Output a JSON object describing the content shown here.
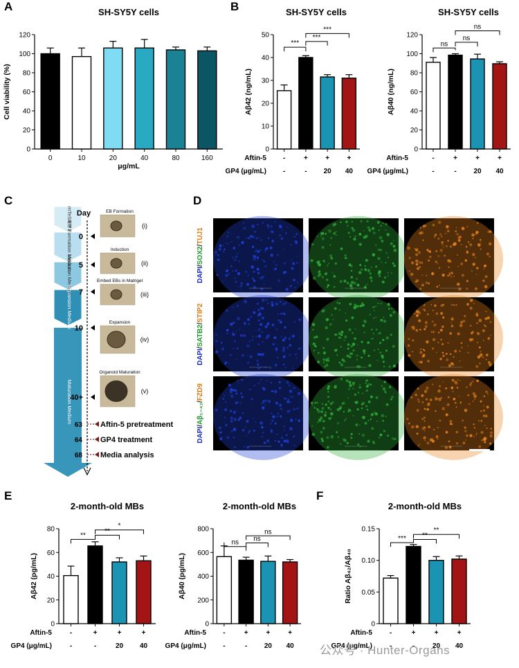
{
  "panel_labels": {
    "A": "A",
    "B": "B",
    "C": "C",
    "D": "D",
    "E": "E",
    "F": "F"
  },
  "chart_data": [
    {
      "id": "A",
      "type": "bar",
      "title": "SH-SY5Y cells",
      "ylabel": "Cell viability (%)",
      "xlabel": "μg/mL",
      "ylim": [
        0,
        120
      ],
      "yticks": [
        0,
        20,
        40,
        60,
        80,
        100,
        120
      ],
      "categories": [
        "0",
        "10",
        "20",
        "40",
        "80",
        "160"
      ],
      "values": [
        100,
        97,
        106,
        106,
        104,
        103
      ],
      "errors": [
        6,
        9,
        7,
        9,
        3,
        4
      ],
      "colors": [
        "#000000",
        "#ffffff",
        "#7fdcf2",
        "#29a9c2",
        "#1b8296",
        "#0c5564"
      ],
      "signif": []
    },
    {
      "id": "B1",
      "type": "bar",
      "title": "SH-SY5Y cells",
      "ylabel": "Aβ42 (ng/mL)",
      "ylim": [
        0,
        50
      ],
      "yticks": [
        0,
        10,
        20,
        30,
        40,
        50
      ],
      "cond_rows": [
        {
          "label": "Aftin-5",
          "values": [
            "-",
            "+",
            "+",
            "+"
          ]
        },
        {
          "label": "GP4 (μg/mL)",
          "values": [
            "-",
            "-",
            "20",
            "40"
          ]
        }
      ],
      "values": [
        25.5,
        40,
        31.5,
        31
      ],
      "errors": [
        2.5,
        0.8,
        1.0,
        1.5
      ],
      "colors": [
        "#ffffff",
        "#000000",
        "#1b94b3",
        "#a31515"
      ],
      "signif": [
        {
          "from": 0,
          "to": 1,
          "label": "***",
          "y": 44.5
        },
        {
          "from": 1,
          "to": 2,
          "label": "***",
          "y": 47
        },
        {
          "from": 1,
          "to": 3,
          "label": "***",
          "y": 50.5
        }
      ]
    },
    {
      "id": "B2",
      "type": "bar",
      "title": "SH-SY5Y cells",
      "ylabel": "Aβ40 (ng/mL)",
      "ylim": [
        0,
        120
      ],
      "yticks": [
        0,
        20,
        40,
        60,
        80,
        100,
        120
      ],
      "cond_rows": [
        {
          "label": "Aftin-5",
          "values": [
            "-",
            "+",
            "+",
            "+"
          ]
        },
        {
          "label": "GP4 (μg/mL)",
          "values": [
            "-",
            "-",
            "20",
            "40"
          ]
        }
      ],
      "values": [
        91,
        98.5,
        94.5,
        89.5
      ],
      "errors": [
        5,
        1.5,
        5,
        2
      ],
      "colors": [
        "#ffffff",
        "#000000",
        "#1b94b3",
        "#a31515"
      ],
      "signif": [
        {
          "from": 0,
          "to": 1,
          "label": "ns",
          "y": 106
        },
        {
          "from": 1,
          "to": 2,
          "label": "ns",
          "y": 112
        },
        {
          "from": 1,
          "to": 3,
          "label": "ns",
          "y": 124
        }
      ]
    },
    {
      "id": "E1",
      "type": "bar",
      "title": "2-month-old MBs",
      "ylabel": "Aβ42 (pg/mL)",
      "ylim": [
        0,
        80
      ],
      "yticks": [
        0,
        20,
        40,
        60,
        80
      ],
      "cond_rows": [
        {
          "label": "Aftin-5",
          "values": [
            "-",
            "+",
            "+",
            "+"
          ]
        },
        {
          "label": "GP4 (μg/mL)",
          "values": [
            "-",
            "-",
            "20",
            "40"
          ]
        }
      ],
      "values": [
        40.5,
        65.5,
        52,
        53
      ],
      "errors": [
        8,
        3.5,
        3.5,
        4
      ],
      "colors": [
        "#ffffff",
        "#000000",
        "#1b94b3",
        "#a31515"
      ],
      "signif": [
        {
          "from": 0,
          "to": 1,
          "label": "**",
          "y": 71
        },
        {
          "from": 1,
          "to": 2,
          "label": "**",
          "y": 74.5
        },
        {
          "from": 1,
          "to": 3,
          "label": "*",
          "y": 79
        }
      ]
    },
    {
      "id": "E2",
      "type": "bar",
      "title": "2-month-old MBs",
      "ylabel": "Aβ40 (pg/mL)",
      "ylim": [
        0,
        800
      ],
      "yticks": [
        0,
        200,
        400,
        600,
        800
      ],
      "cond_rows": [
        {
          "label": "Aftin-5",
          "values": [
            "-",
            "+",
            "+",
            "+"
          ]
        },
        {
          "label": "GP4 (μg/mL)",
          "values": [
            "-",
            "-",
            "20",
            "40"
          ]
        }
      ],
      "values": [
        565,
        535,
        525,
        520
      ],
      "errors": [
        90,
        25,
        45,
        20
      ],
      "colors": [
        "#ffffff",
        "#000000",
        "#1b94b3",
        "#a31515"
      ],
      "signif": [
        {
          "from": 0,
          "to": 1,
          "label": "ns",
          "y": 650
        },
        {
          "from": 1,
          "to": 2,
          "label": "ns",
          "y": 680
        },
        {
          "from": 1,
          "to": 3,
          "label": "ns",
          "y": 740
        }
      ]
    },
    {
      "id": "F",
      "type": "bar",
      "title": "2-month-old MBs",
      "ylabel": "Ratio Aβ₄₂/Aβ₄₀",
      "ylim": [
        0,
        0.15
      ],
      "yticks": [
        0,
        0.05,
        0.1,
        0.15
      ],
      "ytick_labels": [
        "0",
        "0.05",
        "0.10",
        "0.15"
      ],
      "cond_rows": [
        {
          "label": "Aftin-5",
          "values": [
            "-",
            "+",
            "+",
            "+"
          ]
        },
        {
          "label": "GP4 (μg/mL)",
          "values": [
            "-",
            "-",
            "20",
            "40"
          ]
        }
      ],
      "values": [
        0.072,
        0.122,
        0.1,
        0.102
      ],
      "errors": [
        0.004,
        0.003,
        0.006,
        0.005
      ],
      "colors": [
        "#ffffff",
        "#000000",
        "#1b94b3",
        "#a31515"
      ],
      "signif": [
        {
          "from": 0,
          "to": 1,
          "label": "***",
          "y": 0.128
        },
        {
          "from": 1,
          "to": 2,
          "label": "**",
          "y": 0.133
        },
        {
          "from": 1,
          "to": 3,
          "label": "**",
          "y": 0.141
        }
      ]
    }
  ],
  "protocol": {
    "day_header": "Day",
    "medium_labels": [
      "mTeSR™1",
      "EB Formation Medium",
      "Induction Medium",
      "Expansion Medium",
      "Maturation Medium"
    ],
    "days": [
      "0",
      "5",
      "7",
      "10",
      "40+"
    ],
    "stages": [
      {
        "title": "EB Formation",
        "roman": "(i)"
      },
      {
        "title": "Induction",
        "roman": "(ii)"
      },
      {
        "title": "Embed EBs in Matrigel",
        "roman": "(iii)"
      },
      {
        "title": "Expansion",
        "roman": "(iv)"
      },
      {
        "title": "Organoid Maturation",
        "roman": "(v)"
      }
    ],
    "treatments": [
      {
        "day": "63",
        "label": "Aftin-5 pretreatment"
      },
      {
        "day": "64",
        "label": "GP4 treatment"
      },
      {
        "day": "68",
        "label": "Media analysis"
      }
    ]
  },
  "microscopy": {
    "rows": [
      {
        "parts": [
          {
            "text": "DAPI",
            "color": "#1a2ec8"
          },
          {
            "text": "/",
            "color": "#222222"
          },
          {
            "text": "SOX2",
            "color": "#1f9a2a"
          },
          {
            "text": "/",
            "color": "#222222"
          },
          {
            "text": "TUJ1",
            "color": "#e07a10"
          }
        ]
      },
      {
        "parts": [
          {
            "text": "DAPI",
            "color": "#1a2ec8"
          },
          {
            "text": "/",
            "color": "#222222"
          },
          {
            "text": "SATB2",
            "color": "#1f9a2a"
          },
          {
            "text": "/",
            "color": "#222222"
          },
          {
            "text": "STIP2",
            "color": "#e07a10"
          }
        ]
      },
      {
        "parts": [
          {
            "text": "DAPI",
            "color": "#1a2ec8"
          },
          {
            "text": "/",
            "color": "#222222"
          },
          {
            "text": "Aβ₁₋₄₂",
            "color": "#1f9a2a"
          },
          {
            "text": "/",
            "color": "#222222"
          },
          {
            "text": "FZD9",
            "color": "#e07a10"
          }
        ]
      }
    ],
    "channel_colors": [
      "#2040d8",
      "#2fb03a",
      "#e8841a"
    ]
  },
  "watermark": "公众号 · Hunter-Organs"
}
